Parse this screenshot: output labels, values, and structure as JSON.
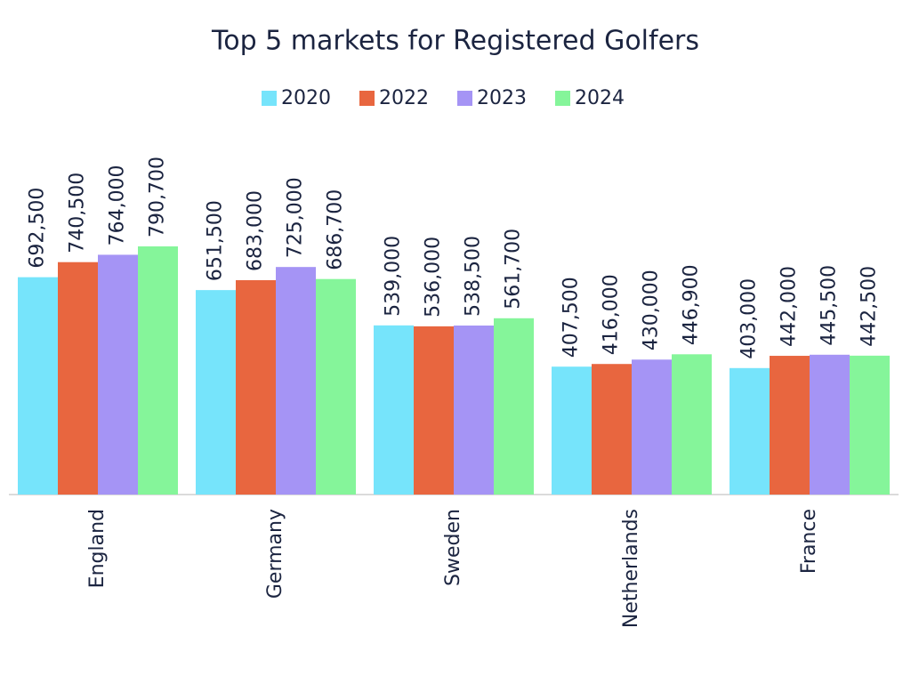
{
  "chart_data": {
    "type": "bar",
    "title": "Top 5 markets for Registered Golfers",
    "categories": [
      "England",
      "Germany",
      "Sweden",
      "Netherlands",
      "France"
    ],
    "series": [
      {
        "name": "2020",
        "color": "#76e4fb",
        "values": [
          692500,
          651500,
          539000,
          407500,
          403000
        ],
        "value_labels": [
          "692,500",
          "651,500",
          "539,000",
          "407,500",
          "403,000"
        ]
      },
      {
        "name": "2022",
        "color": "#e8663f",
        "values": [
          740500,
          683000,
          536000,
          416000,
          442000
        ],
        "value_labels": [
          "740,500",
          "683,000",
          "536,000",
          "416,000",
          "442,000"
        ]
      },
      {
        "name": "2023",
        "color": "#a594f5",
        "values": [
          764000,
          725000,
          538500,
          430000,
          445500
        ],
        "value_labels": [
          "764,000",
          "725,000",
          "538,500",
          "430,000",
          "445,500"
        ]
      },
      {
        "name": "2024",
        "color": "#85f59a",
        "values": [
          790700,
          686700,
          561700,
          446900,
          442500
        ],
        "value_labels": [
          "790,700",
          "686,700",
          "561,700",
          "446,900",
          "442,500"
        ]
      }
    ],
    "legend": "top"
  }
}
